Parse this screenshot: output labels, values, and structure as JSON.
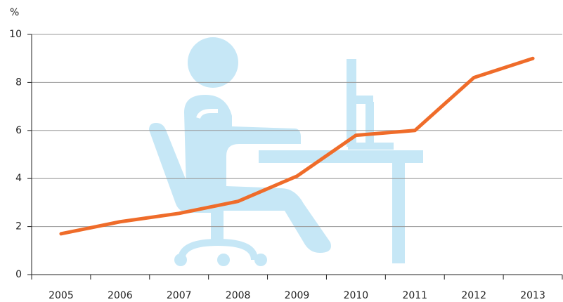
{
  "chart_data": {
    "type": "line",
    "y_label": "%",
    "categories": [
      "2005",
      "2006",
      "2007",
      "2008",
      "2009",
      "2010",
      "2011",
      "2012",
      "2013"
    ],
    "values": [
      1.7,
      2.2,
      2.55,
      3.05,
      4.1,
      5.8,
      6.0,
      8.2,
      9.0
    ],
    "color": "#ef6c2a",
    "ylim": [
      0,
      10
    ],
    "yticks": [
      0,
      2,
      4,
      6,
      8,
      10
    ],
    "grid": true
  }
}
